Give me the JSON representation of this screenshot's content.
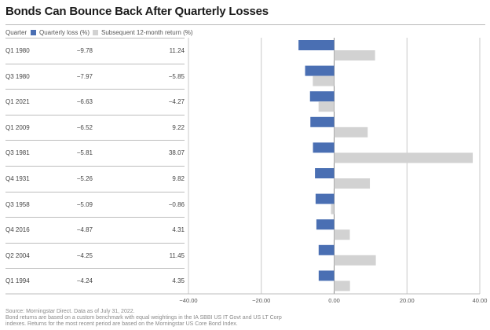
{
  "title": "Bonds Can Bounce Back After Quarterly Losses",
  "header": {
    "quarter": "Quarter",
    "loss_legend": "Quarterly loss (%)",
    "return_legend": "Subsequent 12-month return (%)"
  },
  "colors": {
    "loss": "#4a6fb3",
    "return": "#d2d2d2",
    "grid": "#c8c8c8",
    "zero": "#888888"
  },
  "rows": [
    {
      "quarter": "Q1 1980",
      "loss_label": "−9.78",
      "return_label": "11.24"
    },
    {
      "quarter": "Q3 1980",
      "loss_label": "−7.97",
      "return_label": "−5.85"
    },
    {
      "quarter": "Q1 2021",
      "loss_label": "−6.63",
      "return_label": "−4.27"
    },
    {
      "quarter": "Q1 2009",
      "loss_label": "−6.52",
      "return_label": "9.22"
    },
    {
      "quarter": "Q3 1981",
      "loss_label": "−5.81",
      "return_label": "38.07"
    },
    {
      "quarter": "Q4 1931",
      "loss_label": "−5.26",
      "return_label": "9.82"
    },
    {
      "quarter": "Q3 1958",
      "loss_label": "−5.09",
      "return_label": "−0.86"
    },
    {
      "quarter": "Q4 2016",
      "loss_label": "−4.87",
      "return_label": "4.31"
    },
    {
      "quarter": "Q2 2004",
      "loss_label": "−4.25",
      "return_label": "11.45"
    },
    {
      "quarter": "Q1 1994",
      "loss_label": "−4.24",
      "return_label": "4.35"
    }
  ],
  "chart_data": {
    "type": "bar",
    "title": "Bonds Can Bounce Back After Quarterly Losses",
    "orientation": "horizontal",
    "categories": [
      "Q1 1980",
      "Q3 1980",
      "Q1 2021",
      "Q1 2009",
      "Q3 1981",
      "Q4 1931",
      "Q3 1958",
      "Q4 2016",
      "Q2 2004",
      "Q1 1994"
    ],
    "series": [
      {
        "name": "Quarterly loss (%)",
        "values": [
          -9.78,
          -7.97,
          -6.63,
          -6.52,
          -5.81,
          -5.26,
          -5.09,
          -4.87,
          -4.25,
          -4.24
        ]
      },
      {
        "name": "Subsequent 12-month return (%)",
        "values": [
          11.24,
          -5.85,
          -4.27,
          9.22,
          38.07,
          9.82,
          -0.86,
          4.31,
          11.45,
          4.35
        ]
      }
    ],
    "xlim": [
      -40,
      40
    ],
    "x_ticks": [
      -40,
      -20,
      0,
      20,
      40
    ],
    "x_tick_labels": [
      "−40.00",
      "−20.00",
      "0.00",
      "20.00",
      "40.00"
    ],
    "grid": true,
    "legend": "top-left"
  },
  "footnote": {
    "line1": "Source: Morningstar Direct. Data as of July 31, 2022.",
    "line2": "Bond returns are based on a custom benchmark with equal weightings in the IA SBBI US IT Govt and US LT Corp",
    "line3": "indexes. Returns for the most recent period are based on the Morningstar US Core Bond Index."
  }
}
